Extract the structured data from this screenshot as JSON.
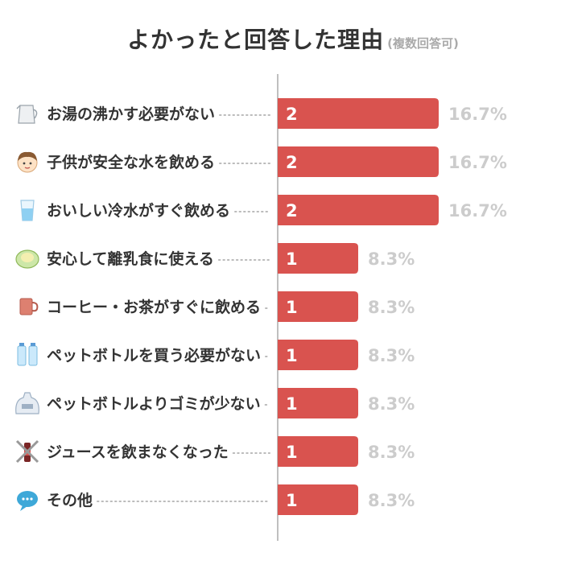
{
  "title": "よかったと回答した理由",
  "subtitle": "(複数回答可)",
  "colors": {
    "bar": "#d9534f",
    "bar_text": "#ffffff",
    "percent": "#cccccc",
    "label": "#333333",
    "axis": "#aaaaaa",
    "dots": "#bbbbbb"
  },
  "chart_data": {
    "type": "bar",
    "orientation": "horizontal",
    "title": "よかったと回答した理由",
    "subtitle": "(複数回答可)",
    "xlim": [
      0,
      2
    ],
    "grid": false,
    "legend": "none",
    "categories": [
      "お湯の沸かす必要がない",
      "子供が安全な水を飲める",
      "おいしい冷水がすぐ飲める",
      "安心して離乳食に使える",
      "コーヒー・お茶がすぐに飲める",
      "ペットボトルを買う必要がない",
      "ペットボトルよりゴミが少ない",
      "ジュースを飲まなくなった",
      "その他"
    ],
    "values": [
      2,
      2,
      2,
      1,
      1,
      1,
      1,
      1,
      1
    ],
    "percent_labels": [
      "16.7%",
      "16.7%",
      "16.7%",
      "8.3%",
      "8.3%",
      "8.3%",
      "8.3%",
      "8.3%",
      "8.3%"
    ],
    "icons": [
      "kettle-icon",
      "child-face-icon",
      "water-glass-icon",
      "baby-food-bowl-icon",
      "coffee-mug-icon",
      "water-bottles-icon",
      "garbage-bag-icon",
      "no-juice-icon",
      "speech-bubble-icon"
    ]
  }
}
